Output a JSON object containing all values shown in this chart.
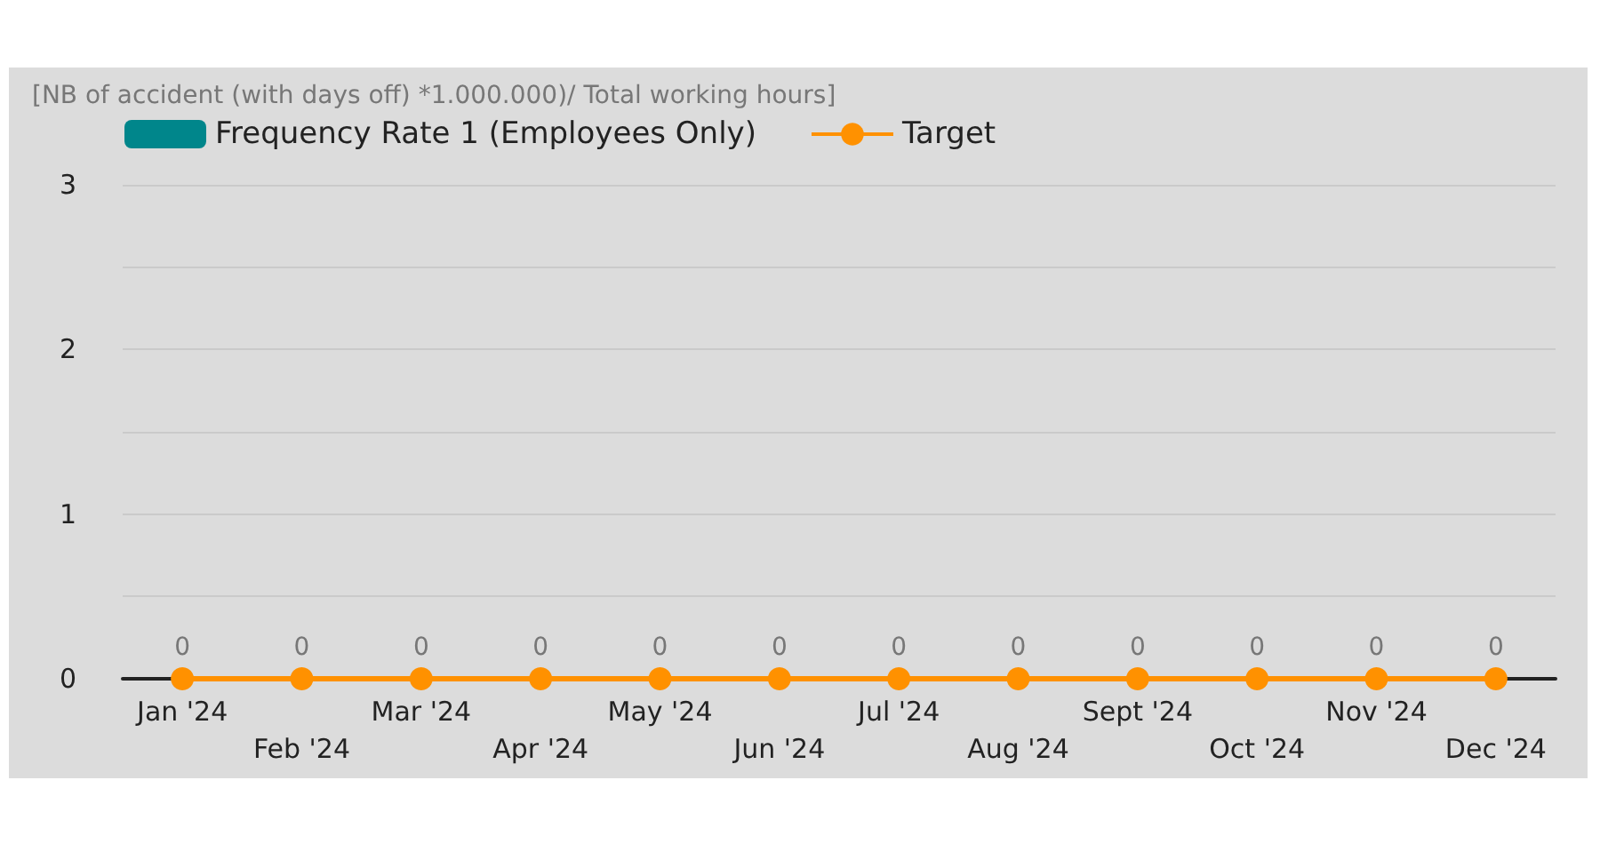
{
  "chart_data": {
    "type": "bar",
    "title": "[NB of accident (with days off) *1.000.000)/ Total working hours]",
    "categories": [
      "Jan '24",
      "Feb '24",
      "Mar '24",
      "Apr '24",
      "May '24",
      "Jun '24",
      "Jul '24",
      "Aug '24",
      "Sept '24",
      "Oct '24",
      "Nov '24",
      "Dec '24"
    ],
    "series": [
      {
        "name": "Frequency Rate 1 (Employees Only)",
        "color": "#00868b",
        "values": [
          0,
          0,
          0,
          0,
          0,
          0,
          0,
          0,
          0,
          0,
          0,
          0
        ]
      },
      {
        "name": "Target",
        "type": "line",
        "color": "#ff9100",
        "values": [
          0,
          0,
          0,
          0,
          0,
          0,
          0,
          0,
          0,
          0,
          0,
          0
        ],
        "value_labels": [
          "0",
          "0",
          "0",
          "0",
          "0",
          "0",
          "0",
          "0",
          "0",
          "0",
          "0",
          "0"
        ]
      }
    ],
    "ylim": [
      0,
      3
    ],
    "yticks": [
      0,
      {
        "value": 0.5,
        "label": null
      },
      1,
      {
        "value": 1.5,
        "label": null
      },
      2,
      {
        "value": 2.5,
        "label": null
      },
      3
    ],
    "grid": "y",
    "legend": "top left",
    "marker": "circle"
  }
}
